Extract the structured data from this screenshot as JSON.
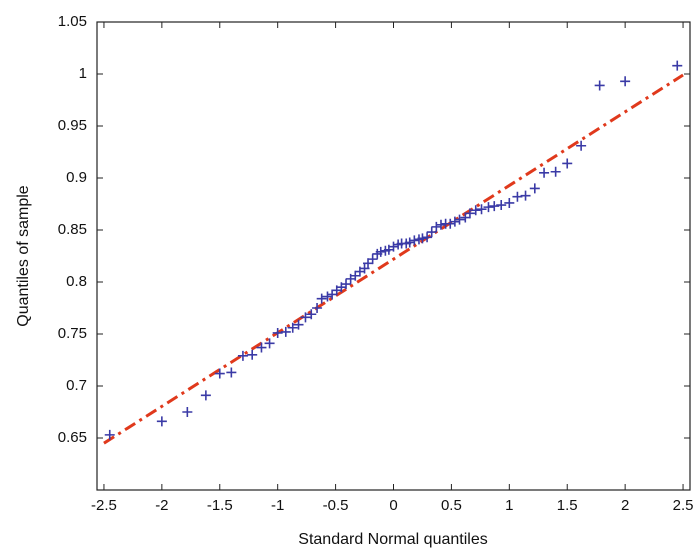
{
  "chart_data": {
    "type": "scatter",
    "x_label": "Standard Normal quantiles",
    "y_label": "Quantiles of sample",
    "x": [
      -2.45,
      -2.0,
      -1.78,
      -1.62,
      -1.5,
      -1.4,
      -1.3,
      -1.22,
      -1.14,
      -1.07,
      -1.0,
      -0.93,
      -0.87,
      -0.82,
      -0.76,
      -0.71,
      -0.66,
      -0.62,
      -0.57,
      -0.53,
      -0.49,
      -0.45,
      -0.41,
      -0.37,
      -0.33,
      -0.29,
      -0.25,
      -0.22,
      -0.18,
      -0.14,
      -0.11,
      -0.07,
      -0.04,
      0.0,
      0.04,
      0.07,
      0.11,
      0.14,
      0.18,
      0.22,
      0.25,
      0.29,
      0.33,
      0.37,
      0.41,
      0.45,
      0.49,
      0.53,
      0.57,
      0.62,
      0.66,
      0.71,
      0.76,
      0.82,
      0.87,
      0.93,
      1.0,
      1.07,
      1.14,
      1.22,
      1.3,
      1.4,
      1.5,
      1.62,
      1.78,
      2.0,
      2.45
    ],
    "values": [
      0.653,
      0.666,
      0.675,
      0.691,
      0.712,
      0.713,
      0.729,
      0.73,
      0.737,
      0.741,
      0.751,
      0.752,
      0.756,
      0.759,
      0.766,
      0.769,
      0.775,
      0.784,
      0.786,
      0.788,
      0.792,
      0.795,
      0.798,
      0.803,
      0.806,
      0.81,
      0.813,
      0.818,
      0.822,
      0.827,
      0.829,
      0.83,
      0.831,
      0.834,
      0.836,
      0.837,
      0.837,
      0.838,
      0.84,
      0.841,
      0.842,
      0.843,
      0.848,
      0.853,
      0.855,
      0.856,
      0.856,
      0.858,
      0.86,
      0.862,
      0.866,
      0.869,
      0.87,
      0.872,
      0.873,
      0.874,
      0.876,
      0.882,
      0.883,
      0.89,
      0.905,
      0.906,
      0.914,
      0.931,
      0.989,
      0.993,
      1.008
    ],
    "color": "#3a3aa6",
    "reference_line": {
      "x": [
        -2.5,
        2.5
      ],
      "y": [
        0.645,
        0.999
      ],
      "color": "#e0391c"
    },
    "xlim": [
      -2.56,
      2.56
    ],
    "ylim": [
      0.6,
      1.05
    ],
    "xticks": [
      -2.5,
      -2,
      -1.5,
      -1,
      -0.5,
      0,
      0.5,
      1,
      1.5,
      2,
      2.5
    ],
    "yticks": [
      0.65,
      0.7,
      0.75,
      0.8,
      0.85,
      0.9,
      0.95,
      1,
      1.05
    ]
  }
}
